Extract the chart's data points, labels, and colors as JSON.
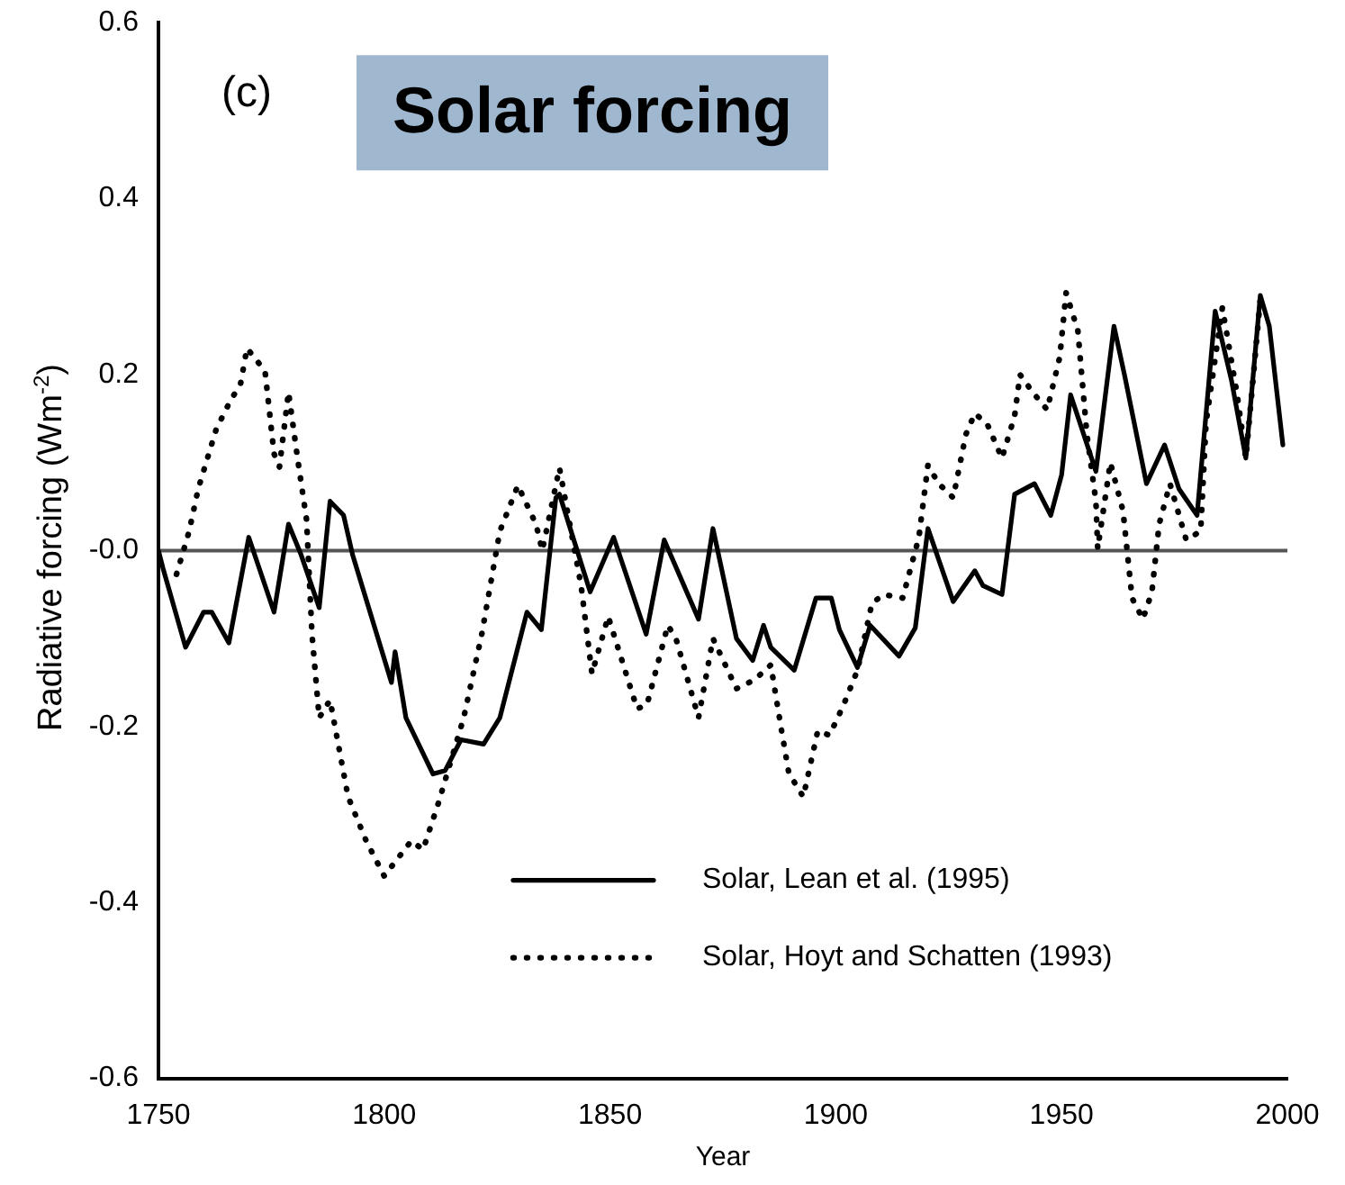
{
  "chart_data": {
    "type": "line",
    "xlabel": "Year",
    "ylabel": "Radiative forcing (Wm$^{-2}$)",
    "annotations": [
      "(c)",
      "Solar forcing"
    ],
    "xlim": [
      1750,
      2000
    ],
    "xticks": [
      1750,
      1800,
      1850,
      1900,
      1950,
      2000
    ],
    "ylim": [
      -0.6,
      0.6
    ],
    "yticks": [
      -0.6,
      -0.4,
      -0.2,
      {
        "value": 0,
        "label": "-0.0"
      },
      0.2,
      0.4,
      0.6
    ],
    "grid": false,
    "legend": "bottom right",
    "marker": "none",
    "ref_lines": [
      {
        "axis": "y",
        "value": 0,
        "color": "#555555"
      }
    ],
    "series": [
      {
        "name": "Solar, Lean et al. (1995)",
        "color": "#000000",
        "line_style": "solid",
        "x": [
          1750,
          1751,
          1756,
          1760,
          1761.8,
          1765.6,
          1770,
          1775.6,
          1778.8,
          1781.6,
          1785.6,
          1788,
          1791,
          1793,
          1801.6,
          1802.4,
          1804.8,
          1810.8,
          1813.5,
          1817,
          1822,
          1825.6,
          1831.6,
          1834.8,
          1838,
          1838.8,
          1845.6,
          1850.8,
          1858,
          1862,
          1869.6,
          1872.8,
          1878,
          1881.6,
          1884,
          1885.6,
          1890.8,
          1895.6,
          1899,
          1900.8,
          1904.8,
          1907.6,
          1914,
          1917.6,
          1920.4,
          1926,
          1930.8,
          1932.6,
          1936.8,
          1939.6,
          1944,
          1947.6,
          1950,
          1952,
          1957.6,
          1961.6,
          1964,
          1968.8,
          1972.8,
          1976,
          1980,
          1984,
          1987.6,
          1990.8,
          1994,
          1996,
          1999
        ],
        "values": [
          0,
          -0.02,
          -0.11,
          -0.07,
          -0.07,
          -0.105,
          0.015,
          -0.07,
          0.03,
          -0.005,
          -0.065,
          0.056,
          0.04,
          -0.005,
          -0.15,
          -0.115,
          -0.19,
          -0.254,
          -0.25,
          -0.215,
          -0.22,
          -0.19,
          -0.07,
          -0.09,
          0.06,
          0.064,
          -0.047,
          0.015,
          -0.095,
          0.012,
          -0.078,
          0.025,
          -0.1,
          -0.125,
          -0.085,
          -0.11,
          -0.136,
          -0.054,
          -0.054,
          -0.09,
          -0.133,
          -0.085,
          -0.12,
          -0.088,
          0.025,
          -0.058,
          -0.023,
          -0.04,
          -0.05,
          0.064,
          0.076,
          0.04,
          0.086,
          0.177,
          0.09,
          0.255,
          0.198,
          0.076,
          0.12,
          0.07,
          0.04,
          0.272,
          0.194,
          0.105,
          0.29,
          0.255,
          0.12
        ]
      },
      {
        "name": "Solar, Hoyt and Schatten (1993)",
        "color": "#000000",
        "line_style": "dotted",
        "x": [
          1754,
          1756.8,
          1758.8,
          1762.8,
          1765.6,
          1768.2,
          1769.6,
          1773.6,
          1775.6,
          1776.8,
          1778.8,
          1780.8,
          1782.8,
          1784,
          1785.6,
          1788,
          1792,
          1796,
          1800,
          1806,
          1808.6,
          1812,
          1817.6,
          1821.6,
          1825.6,
          1829.6,
          1833.6,
          1835,
          1838.8,
          1843.6,
          1846,
          1849.6,
          1856,
          1858.2,
          1862.8,
          1864.6,
          1869.6,
          1872.8,
          1878,
          1882,
          1885.6,
          1888,
          1889.6,
          1892.8,
          1896,
          1898.6,
          1901.6,
          1904.8,
          1908,
          1910.6,
          1914.8,
          1918.4,
          1920.4,
          1922.8,
          1926,
          1928.8,
          1930.8,
          1933.6,
          1936.8,
          1939.6,
          1940.8,
          1943.6,
          1946.8,
          1949.6,
          1951,
          1953.6,
          1955.6,
          1957.6,
          1958,
          1960.8,
          1963.6,
          1965.6,
          1968,
          1970,
          1971.6,
          1974,
          1977.6,
          1980.8,
          1982,
          1985.6,
          1988.8,
          1990.8,
          1994
        ],
        "values": [
          -0.027,
          0.022,
          0.07,
          0.138,
          0.167,
          0.19,
          0.23,
          0.204,
          0.11,
          0.095,
          0.18,
          0.105,
          0.035,
          -0.095,
          -0.19,
          -0.17,
          -0.28,
          -0.33,
          -0.37,
          -0.33,
          -0.34,
          -0.287,
          -0.19,
          -0.095,
          0.022,
          0.074,
          0.03,
          0,
          0.094,
          -0.04,
          -0.14,
          -0.075,
          -0.18,
          -0.175,
          -0.085,
          -0.1,
          -0.19,
          -0.1,
          -0.157,
          -0.147,
          -0.13,
          -0.205,
          -0.253,
          -0.28,
          -0.205,
          -0.21,
          -0.177,
          -0.136,
          -0.06,
          -0.05,
          -0.054,
          0.015,
          0.097,
          0.076,
          0.06,
          0.132,
          0.156,
          0.143,
          0.105,
          0.153,
          0.2,
          0.18,
          0.16,
          0.22,
          0.293,
          0.25,
          0.132,
          0.056,
          0.002,
          0.1,
          0.045,
          -0.054,
          -0.078,
          -0.047,
          0.03,
          0.076,
          0.012,
          0.022,
          0.146,
          0.276,
          0.18,
          0.105,
          0.285
        ]
      }
    ]
  }
}
